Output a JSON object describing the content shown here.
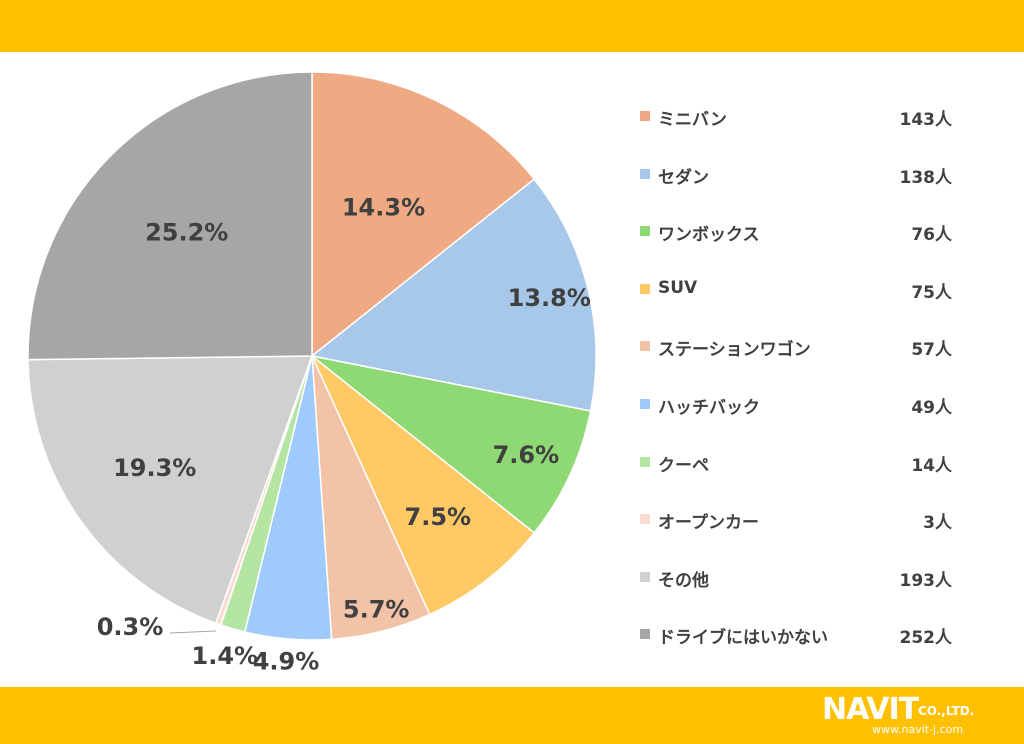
{
  "chart_data": {
    "type": "pie",
    "categories": [
      "ミニバン",
      "セダン",
      "ワンボックス",
      "SUV",
      "ステーションワゴン",
      "ハッチバック",
      "クーペ",
      "オープンカー",
      "その他",
      "ドライブにはいかない"
    ],
    "values": [
      143,
      138,
      76,
      75,
      57,
      49,
      14,
      3,
      193,
      252
    ],
    "percent_labels": [
      "14.3%",
      "13.8%",
      "7.6%",
      "7.5%",
      "5.7%",
      "4.9%",
      "1.4%",
      "0.3%",
      "19.3%",
      "25.2%"
    ],
    "count_labels": [
      "143人",
      "138人",
      "76人",
      "75人",
      "57人",
      "49人",
      "14人",
      "3人",
      "193人",
      "252人"
    ],
    "colors": [
      "#F0AA83",
      "#A8C8EA",
      "#8ED973",
      "#FFCA66",
      "#F3C3A8",
      "#9ECBFB",
      "#B5E5A3",
      "#FBDCD2",
      "#D0D0D0",
      "#A6A6A6"
    ],
    "legend_position": "right"
  },
  "logo": {
    "brand": "NAVIT",
    "suffix": "CO.,LTD.",
    "url": "www.navit-j.com"
  },
  "theme": {
    "band_color": "#FFC000"
  }
}
